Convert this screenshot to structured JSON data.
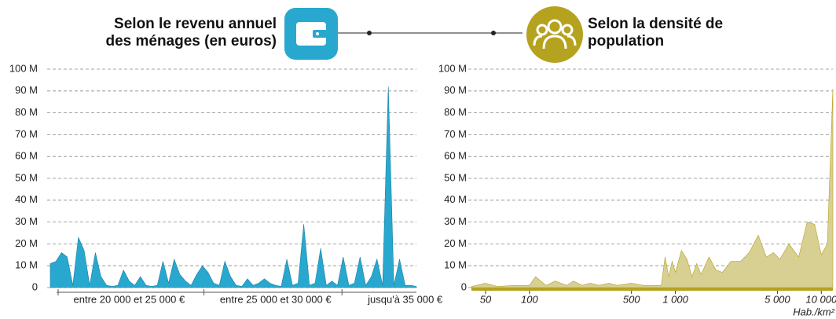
{
  "chart_data": [
    {
      "type": "area",
      "title": "Selon le revenu annuel des ménages (en euros)",
      "color": "#29a8cf",
      "categories": [
        null,
        null,
        null,
        null,
        null,
        null,
        null,
        null,
        null,
        null,
        null,
        null,
        null,
        null,
        "entre 20 000 et 25 000 €",
        null,
        null,
        null,
        null,
        null,
        null,
        null,
        null,
        null,
        null,
        null,
        null,
        null,
        null,
        null,
        null,
        null,
        null,
        null,
        null,
        null,
        null,
        null,
        null,
        null,
        "entre 25 000 et 30 000 €",
        null,
        null,
        null,
        null,
        null,
        null,
        null,
        null,
        null,
        null,
        null,
        null,
        null,
        null,
        null,
        null,
        null,
        null,
        null,
        null,
        null,
        null,
        "jusqu'à 35 000 €",
        null,
        null
      ],
      "values": [
        11000000,
        12000000,
        16000000,
        14000000,
        1000000,
        23000000,
        17000000,
        1000000,
        16000000,
        5000000,
        1000000,
        500000,
        1000000,
        8000000,
        3000000,
        1000000,
        5000000,
        1000000,
        500000,
        1000000,
        12000000,
        2000000,
        13000000,
        6000000,
        3000000,
        1000000,
        6000000,
        10000000,
        7000000,
        2000000,
        1000000,
        12000000,
        5000000,
        1000000,
        500000,
        4000000,
        1000000,
        2000000,
        4000000,
        2000000,
        1000000,
        500000,
        13000000,
        1000000,
        2000000,
        29000000,
        1000000,
        2000000,
        18000000,
        1000000,
        3000000,
        1000000,
        14000000,
        1000000,
        2000000,
        14000000,
        1000000,
        5000000,
        13000000,
        1000000,
        92000000,
        1000000,
        13000000,
        1000000,
        1000000,
        500000
      ],
      "ylim": [
        0,
        100000000
      ],
      "yticks": [
        0,
        {
          "value": 10000000,
          "label": "10 M"
        },
        {
          "value": 20000000,
          "label": "20 M"
        },
        {
          "value": 30000000,
          "label": "30 M"
        },
        {
          "value": 40000000,
          "label": "40 M"
        },
        {
          "value": 50000000,
          "label": "50 M"
        },
        {
          "value": 60000000,
          "label": "60 M"
        },
        {
          "value": 70000000,
          "label": "70 M"
        },
        {
          "value": 80000000,
          "label": "80 M"
        },
        {
          "value": 90000000,
          "label": "90 M"
        },
        {
          "value": 100000000,
          "label": "100 M"
        }
      ],
      "grid": true
    },
    {
      "type": "area",
      "title": "Selon la densité de population",
      "color": "#d8cf93",
      "xscale": "log",
      "xlabel": "Hab./km²",
      "x": [
        40,
        50,
        60,
        80,
        100,
        110,
        130,
        150,
        180,
        200,
        230,
        260,
        300,
        350,
        400,
        500,
        600,
        700,
        800,
        850,
        900,
        950,
        1000,
        1100,
        1200,
        1300,
        1400,
        1500,
        1700,
        1900,
        2100,
        2400,
        2800,
        3200,
        3700,
        4200,
        4700,
        5200,
        6000,
        7000,
        8000,
        9000,
        10000,
        11000,
        12000
      ],
      "values": [
        500000,
        2000000,
        500000,
        1000000,
        1000000,
        5000000,
        1000000,
        3000000,
        1000000,
        3000000,
        1000000,
        2000000,
        1000000,
        2000000,
        1000000,
        2000000,
        1000000,
        1000000,
        1000000,
        14000000,
        5000000,
        12000000,
        7000000,
        17000000,
        13000000,
        5000000,
        11000000,
        6000000,
        14000000,
        8000000,
        7000000,
        12000000,
        12000000,
        16000000,
        24000000,
        14000000,
        16000000,
        13000000,
        20000000,
        14000000,
        30000000,
        29000000,
        15000000,
        20000000,
        91000000
      ],
      "xlim": [
        40,
        12000
      ],
      "xticks": [
        50,
        100,
        500,
        {
          "value": 1000,
          "label": "1 000"
        },
        {
          "value": 5000,
          "label": "5 000"
        },
        {
          "value": 10000,
          "label": "10 000"
        }
      ],
      "ylim": [
        0,
        100000000
      ],
      "yticks": [
        0,
        {
          "value": 10000000,
          "label": "10 M"
        },
        {
          "value": 20000000,
          "label": "20 M"
        },
        {
          "value": 30000000,
          "label": "30 M"
        },
        {
          "value": 40000000,
          "label": "40 M"
        },
        {
          "value": 50000000,
          "label": "50 M"
        },
        {
          "value": 60000000,
          "label": "60 M"
        },
        {
          "value": 70000000,
          "label": "70 M"
        },
        {
          "value": 80000000,
          "label": "80 M"
        },
        {
          "value": 90000000,
          "label": "90 M"
        },
        {
          "value": 100000000,
          "label": "100 M"
        }
      ],
      "grid": true
    }
  ]
}
